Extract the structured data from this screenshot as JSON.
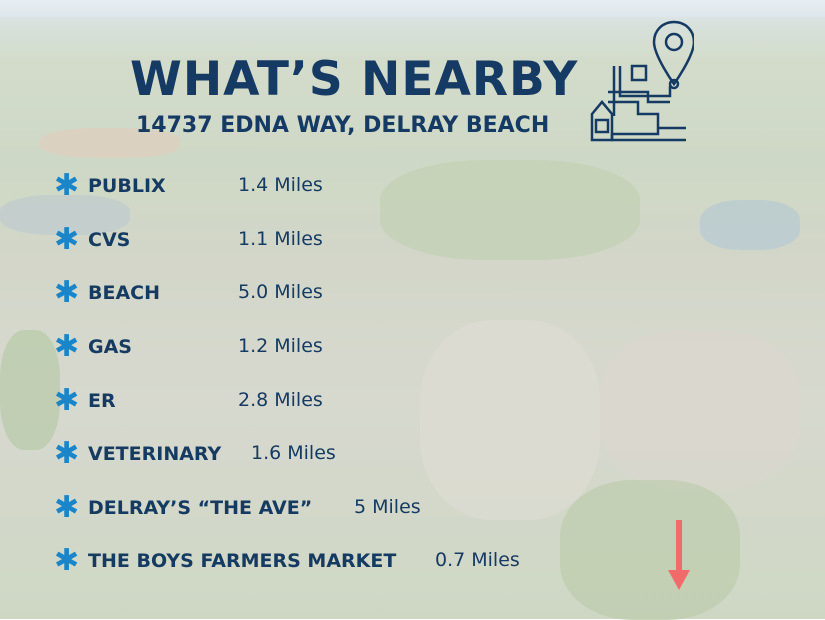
{
  "header": {
    "title": "WHAT’S NEARBY",
    "subtitle": "14737 EDNA WAY, DELRAY BEACH"
  },
  "icons": {
    "bullet": "asterisk-icon",
    "logo": "map-pin-route-icon",
    "marker": "red-arrow-down-icon"
  },
  "colors": {
    "title": "#153a63",
    "bullet": "#1a86c9",
    "arrow": "#f26b6b"
  },
  "places": [
    {
      "name": "PUBLIX",
      "distance": "1.4 Miles"
    },
    {
      "name": "CVS",
      "distance": "1.1 Miles"
    },
    {
      "name": "BEACH",
      "distance": "5.0 Miles"
    },
    {
      "name": "GAS",
      "distance": "1.2 Miles"
    },
    {
      "name": "ER",
      "distance": "2.8 Miles"
    },
    {
      "name": "VETERINARY",
      "distance": "1.6 Miles"
    },
    {
      "name": "DELRAY’S “THE AVE”",
      "distance": "5 Miles"
    },
    {
      "name": "THE BOYS FARMERS MARKET",
      "distance": "0.7 Miles"
    }
  ]
}
